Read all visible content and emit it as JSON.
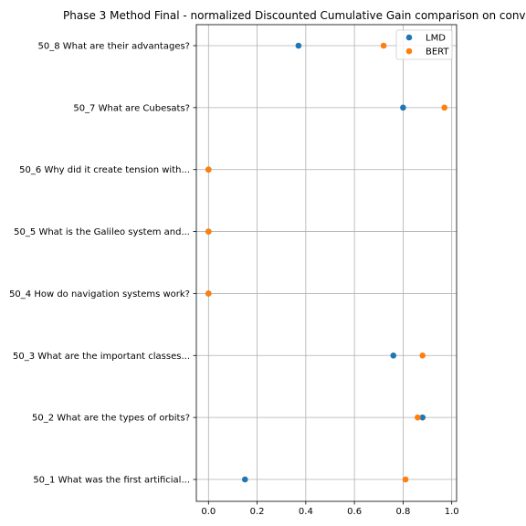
{
  "chart_data": {
    "type": "scatter",
    "title": "Phase 3 Method Final - normalized Discounted Cumulative Gain comparison on conv",
    "xlabel": "",
    "ylabel": "",
    "xlim": [
      -0.05,
      1.02
    ],
    "xticks": [
      0.0,
      0.2,
      0.4,
      0.6,
      0.8,
      1.0
    ],
    "xtick_labels": [
      "0.0",
      "0.2",
      "0.4",
      "0.6",
      "0.8",
      "1.0"
    ],
    "grid": true,
    "legend_position": "top-right",
    "categories": [
      "50_8 What are their advantages?",
      "50_7 What are Cubesats?",
      "50_6 Why did it create tension with...",
      "50_5 What is the Galileo system and...",
      "50_4 How do navigation systems work?",
      "50_3 What are the important classes...",
      "50_2 What are the types of orbits?",
      "50_1 What was the first artificial..."
    ],
    "series": [
      {
        "name": "LMD",
        "color": "#1f77b4",
        "values": [
          0.37,
          0.8,
          0.0,
          0.0,
          0.0,
          0.76,
          0.88,
          0.15
        ]
      },
      {
        "name": "BERT",
        "color": "#ff7f0e",
        "values": [
          0.72,
          0.97,
          0.0,
          0.0,
          0.0,
          0.88,
          0.86,
          0.81
        ]
      }
    ]
  }
}
